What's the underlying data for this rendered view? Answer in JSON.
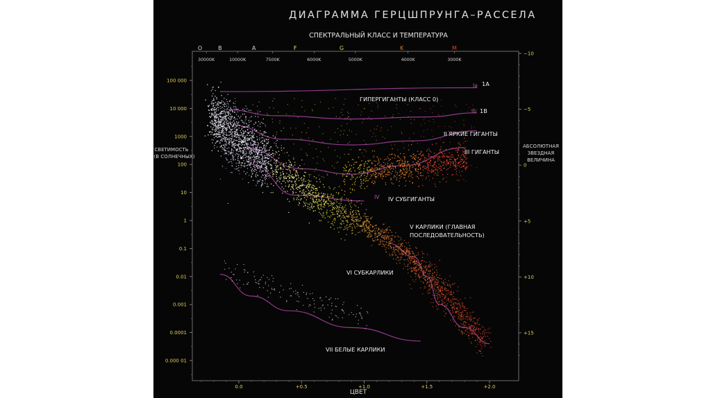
{
  "chart_data": {
    "type": "scatter",
    "title": "ДИАГРАММА ГЕРЦШПРУНГА–РАССЕЛА",
    "top_axis_label": "СПЕКТРАЛЬНЫЙ КЛАСС И ТЕМПЕРАТУРА",
    "xlabel": "ЦВЕТ",
    "ylabel_left": [
      "СВЕТИМОСТЬ",
      "(В СОЛНЕЧНЫХ)"
    ],
    "ylabel_right": [
      "АБСОЛЮТНАЯ",
      "ЗВЕЗДНАЯ",
      "ВЕЛИЧИНА"
    ],
    "x_range": [
      -0.35,
      2.1
    ],
    "x_ticks": [
      {
        "value": 0.0,
        "label": "0.0"
      },
      {
        "value": 0.5,
        "label": "+0.5"
      },
      {
        "value": 1.0,
        "label": "+1.0"
      },
      {
        "value": 1.5,
        "label": "+1.5"
      },
      {
        "value": 2.0,
        "label": "+2.0"
      }
    ],
    "spectral_classes": [
      {
        "label": "O",
        "color": "#d8d8d8",
        "x": -0.31
      },
      {
        "label": "B",
        "color": "#d8d8d8",
        "x": -0.15
      },
      {
        "label": "A",
        "color": "#d8d8d8",
        "x": 0.12
      },
      {
        "label": "F",
        "color": "#e8e88c",
        "x": 0.45
      },
      {
        "label": "G",
        "color": "#e8d050",
        "x": 0.82
      },
      {
        "label": "K",
        "color": "#e87a2a",
        "x": 1.3
      },
      {
        "label": "M",
        "color": "#e04028",
        "x": 1.72
      }
    ],
    "temperatures": [
      {
        "label": "30000K",
        "x": -0.26
      },
      {
        "label": "10000K",
        "x": -0.01
      },
      {
        "label": "7500K",
        "x": 0.27
      },
      {
        "label": "6000K",
        "x": 0.6
      },
      {
        "label": "5000K",
        "x": 0.93
      },
      {
        "label": "4000K",
        "x": 1.35
      },
      {
        "label": "3000K",
        "x": 1.72
      }
    ],
    "luminosity_ticks": [
      {
        "value": 100000,
        "label": "100 000"
      },
      {
        "value": 10000,
        "label": "10 000"
      },
      {
        "value": 1000,
        "label": "1000"
      },
      {
        "value": 100,
        "label": "100"
      },
      {
        "value": 10,
        "label": "10"
      },
      {
        "value": 1,
        "label": "1"
      },
      {
        "value": 0.1,
        "label": "0.1"
      },
      {
        "value": 0.01,
        "label": "0.01"
      },
      {
        "value": 0.001,
        "label": "0.001"
      },
      {
        "value": 0.0001,
        "label": "0.0001"
      },
      {
        "value": 1e-05,
        "label": "0.000 01"
      }
    ],
    "luminosity_range": [
      5e-06,
      300000
    ],
    "magnitude_ticks": [
      {
        "value": -10,
        "label": "−10"
      },
      {
        "value": -5,
        "label": "−5"
      },
      {
        "value": 0,
        "label": "0"
      },
      {
        "value": 5,
        "label": "+5"
      },
      {
        "value": 10,
        "label": "+10"
      },
      {
        "value": 15,
        "label": "+15"
      }
    ],
    "luminosity_classes": [
      {
        "code": "Ia",
        "name": "1A",
        "points": [
          [
            -0.15,
            40000
          ],
          [
            1.9,
            55000
          ]
        ]
      },
      {
        "code": "Ib",
        "name": "1B",
        "points": [
          [
            -0.1,
            9000
          ],
          [
            0.3,
            5500
          ],
          [
            0.9,
            4200
          ],
          [
            1.5,
            5000
          ],
          [
            1.9,
            7000
          ]
        ]
      },
      {
        "code": "",
        "name": "II ЯРКИЕ ГИГАНТЫ",
        "points": [
          [
            -0.05,
            2500
          ],
          [
            0.35,
            800
          ],
          [
            0.9,
            500
          ],
          [
            1.4,
            700
          ],
          [
            1.9,
            1600
          ]
        ]
      },
      {
        "code": "",
        "name": "III ГИГАНТЫ",
        "points": [
          [
            0.05,
            400
          ],
          [
            0.5,
            70
          ],
          [
            0.9,
            45
          ],
          [
            1.3,
            90
          ],
          [
            1.8,
            400
          ]
        ]
      },
      {
        "code": "IV",
        "name": "IV СУБГИГАНТЫ",
        "points": [
          [
            0.1,
            100
          ],
          [
            0.45,
            8
          ],
          [
            1.0,
            5
          ]
        ]
      },
      {
        "code": "",
        "name": "V КАРЛИКИ (ГЛАВНАЯ ПОСЛЕДОВАТЕЛЬНОСТЬ)",
        "points": []
      },
      {
        "code": "",
        "name": "VI СУБКАРЛИКИ",
        "points": [
          [
            1.2,
            0.15
          ],
          [
            1.4,
            0.05
          ],
          [
            1.5,
            0.01
          ],
          [
            1.6,
            0.001
          ],
          [
            1.8,
            0.00015
          ],
          [
            2.0,
            4e-05
          ]
        ]
      },
      {
        "code": "",
        "name": "VII БЕЛЫЕ КАРЛИКИ",
        "points": [
          [
            -0.15,
            0.012
          ],
          [
            0.1,
            0.002
          ],
          [
            0.4,
            0.0006
          ],
          [
            0.9,
            0.00015
          ],
          [
            1.45,
            5e-05
          ]
        ]
      }
    ],
    "star_groups": [
      {
        "name": "main-sequence",
        "color_hot": "#ffffff",
        "color_mid": "#f2f04a",
        "color_cool": "#e8402c"
      },
      {
        "name": "giants",
        "colors": [
          "#ffd426",
          "#ff8a2e",
          "#ff4a2a"
        ]
      },
      {
        "name": "white-dwarfs",
        "colors": [
          "#d6cfc8"
        ]
      }
    ]
  }
}
